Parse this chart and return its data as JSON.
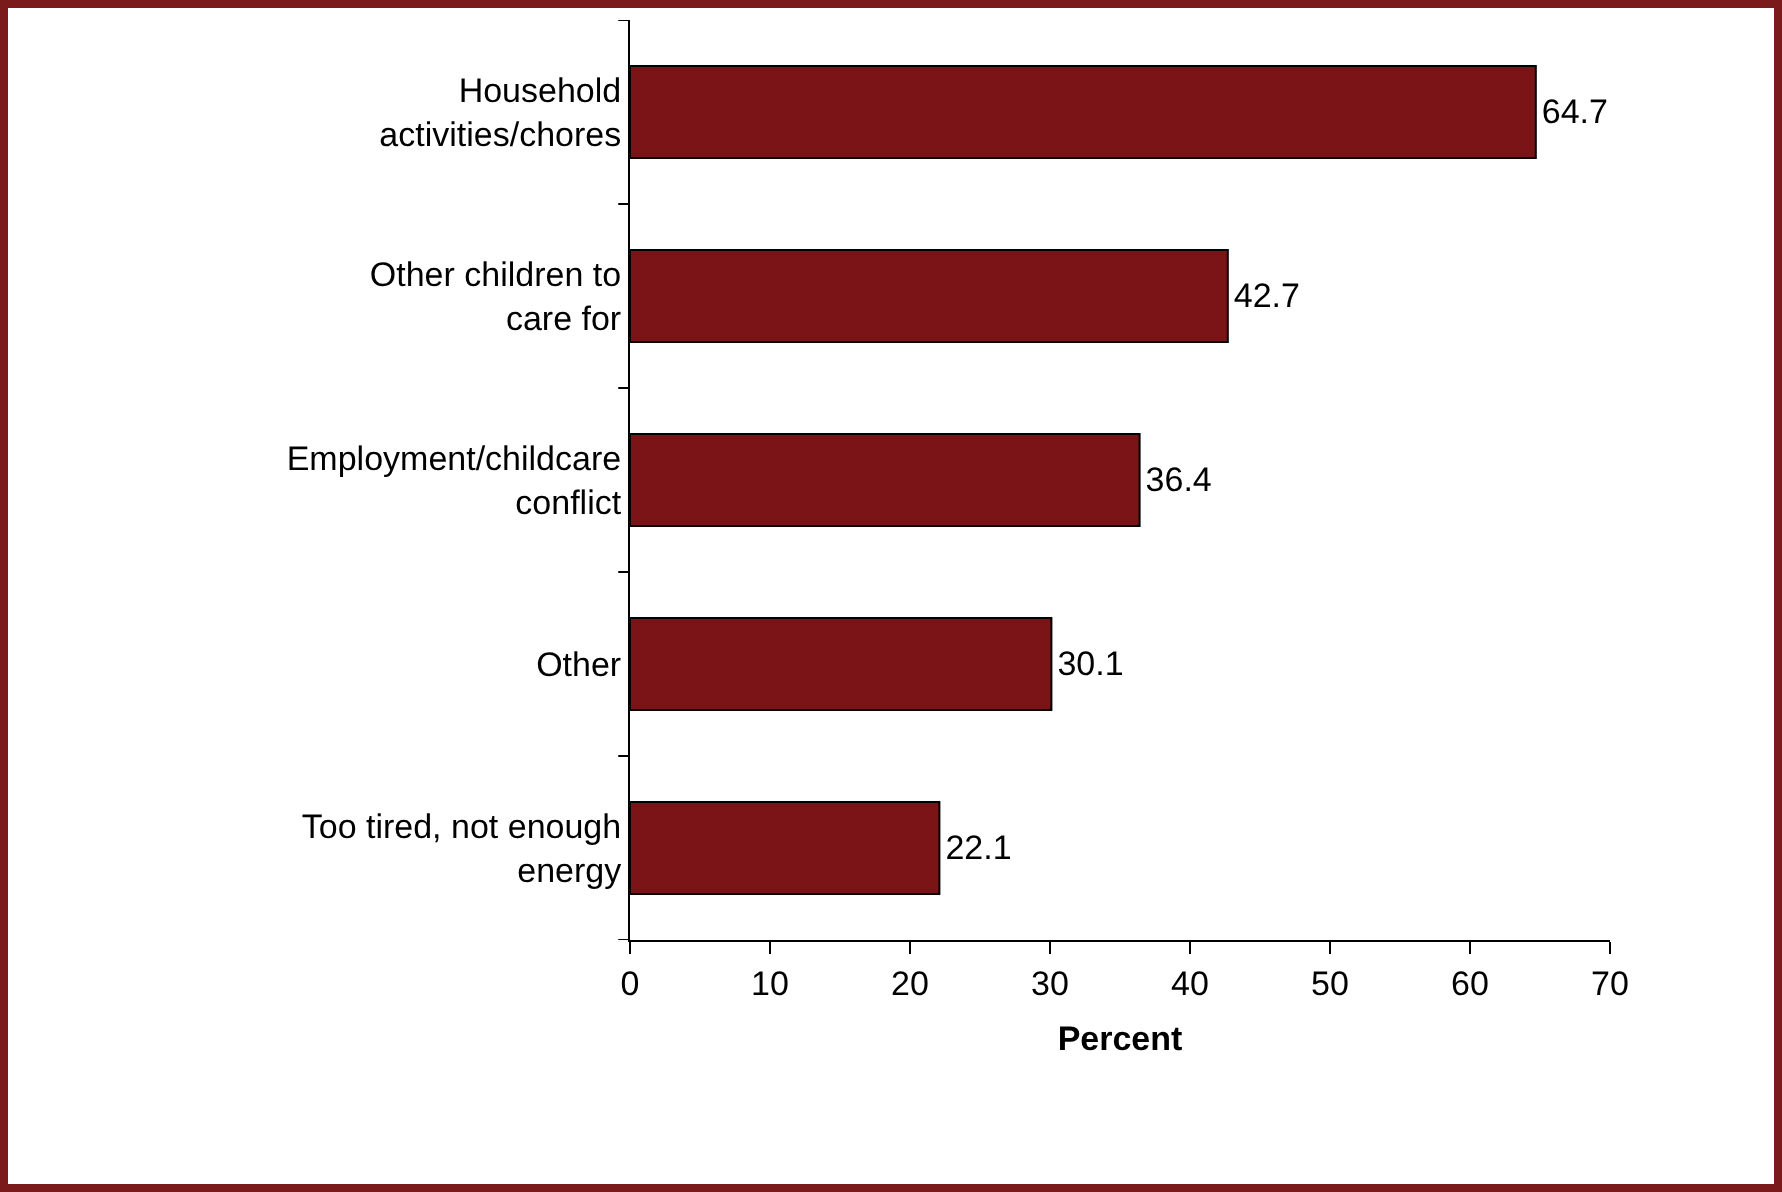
{
  "chart_data": {
    "type": "bar",
    "orientation": "horizontal",
    "categories": [
      "Household activities/chores",
      "Other children to care for",
      "Employment/childcare conflict",
      "Other",
      "Too tired, not enough energy"
    ],
    "values": [
      64.7,
      42.7,
      36.4,
      30.1,
      22.1
    ],
    "color": "#7b1416",
    "xlabel": "Percent",
    "xlim": [
      0,
      70
    ],
    "xticks": [
      0,
      10,
      20,
      30,
      40,
      50,
      60,
      70
    ],
    "data_labels": true,
    "grid": false,
    "legend": false
  }
}
